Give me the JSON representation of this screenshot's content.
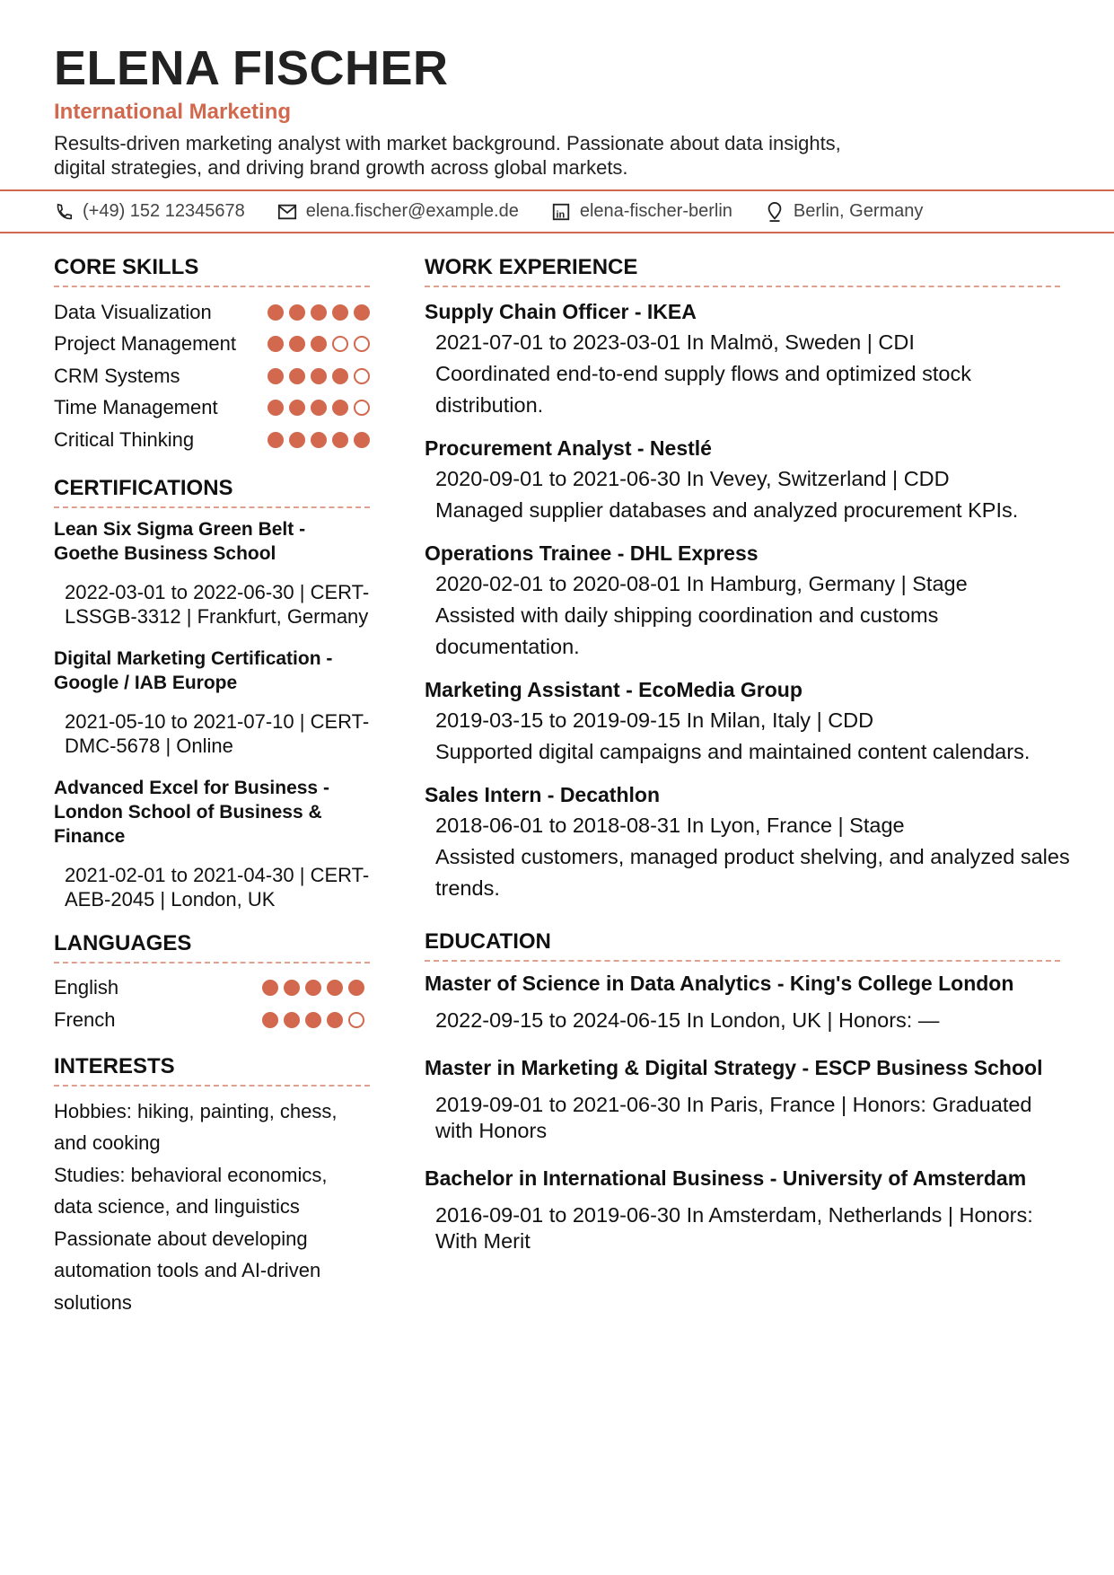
{
  "header": {
    "name": "ELENA FISCHER",
    "title": "International Marketing",
    "summary": "Results-driven marketing analyst with market background. Passionate about data insights, digital strategies, and driving brand growth across global markets."
  },
  "contact": {
    "phone": "(+49) 152 12345678",
    "email": "elena.fischer@example.de",
    "linkedin": "elena-fischer-berlin",
    "location": "Berlin, Germany"
  },
  "colors": {
    "accent": "#d2694e"
  },
  "sections": {
    "skills": "CORE SKILLS",
    "certifications": "CERTIFICATIONS",
    "languages": "LANGUAGES",
    "interests": "INTERESTS",
    "work": "WORK EXPERIENCE",
    "education": "EDUCATION"
  },
  "skills": [
    {
      "name": "Data Visualization",
      "level": 5
    },
    {
      "name": "Project Management",
      "level": 3
    },
    {
      "name": "CRM Systems",
      "level": 4
    },
    {
      "name": "Time Management",
      "level": 4
    },
    {
      "name": "Critical Thinking",
      "level": 5
    }
  ],
  "certifications": [
    {
      "title": "Lean Six Sigma Green Belt - Goethe Business School",
      "details": "2022-03-01 to 2022-06-30 | CERT-LSSGB-3312 | Frankfurt, Germany"
    },
    {
      "title": "Digital Marketing Certification - Google / IAB Europe",
      "details": "2021-05-10 to 2021-07-10 | CERT-DMC-5678 | Online"
    },
    {
      "title": "Advanced Excel for Business - London School of Business & Finance",
      "details": "2021-02-01 to 2021-04-30 | CERT-AEB-2045 | London, UK"
    }
  ],
  "languages": [
    {
      "name": "English",
      "level": 5
    },
    {
      "name": "French",
      "level": 4
    }
  ],
  "interests": [
    "Hobbies: hiking, painting, chess, and cooking",
    "Studies: behavioral economics, data science, and linguistics",
    "Passionate about developing automation tools and AI-driven solutions"
  ],
  "work": [
    {
      "title": "Supply Chain Officer - IKEA",
      "meta": "2021-07-01 to 2023-03-01 In Malmö, Sweden | CDI",
      "desc": "Coordinated end-to-end supply flows and optimized stock distribution."
    },
    {
      "title": "Procurement Analyst - Nestlé",
      "meta": "2020-09-01 to 2021-06-30 In Vevey, Switzerland | CDD",
      "desc": "Managed supplier databases and analyzed procurement KPIs."
    },
    {
      "title": "Operations Trainee - DHL Express",
      "meta": "2020-02-01 to 2020-08-01 In Hamburg, Germany | Stage",
      "desc": "Assisted with daily shipping coordination and customs documentation."
    },
    {
      "title": "Marketing Assistant - EcoMedia Group",
      "meta": "2019-03-15 to 2019-09-15 In Milan, Italy | CDD",
      "desc": "Supported digital campaigns and maintained content calendars."
    },
    {
      "title": "Sales Intern - Decathlon",
      "meta": "2018-06-01 to 2018-08-31 In Lyon, France | Stage",
      "desc": "Assisted customers, managed product shelving, and analyzed sales trends."
    }
  ],
  "education": [
    {
      "title": "Master of Science in Data Analytics - King's College London",
      "details": "2022-09-15 to 2024-06-15 In London, UK | Honors: —"
    },
    {
      "title": "Master in Marketing & Digital Strategy - ESCP Business School",
      "details": "2019-09-01 to 2021-06-30 In Paris, France | Honors: Graduated with Honors"
    },
    {
      "title": "Bachelor in International Business - University of Amsterdam",
      "details": "2016-09-01 to 2019-06-30 In Amsterdam, Netherlands | Honors: With Merit"
    }
  ]
}
